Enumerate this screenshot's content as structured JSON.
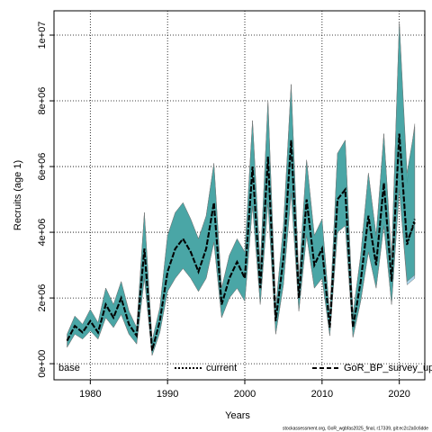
{
  "chart_data": {
    "type": "line",
    "x_label": "Years",
    "y_label": "Recruits (age 1)",
    "legend_label": "base",
    "footer": "stockassessment.org, GoR_wgbfas2025_final, r17339, git:ec2c2a0c6dde",
    "grid": true,
    "xlim": [
      1975.3,
      2023.3
    ],
    "xticks": [
      1980,
      1990,
      2000,
      2010,
      2020
    ],
    "ylim": [
      -490000.0,
      10740000.0
    ],
    "yticks": [
      {
        "value": 0,
        "label": "0e+00"
      },
      {
        "value": 2000000,
        "label": "2e+06"
      },
      {
        "value": 4000000,
        "label": "4e+06"
      },
      {
        "value": 6000000,
        "label": "6e+06"
      },
      {
        "value": 8000000,
        "label": "8e+06"
      },
      {
        "value": 10000000,
        "label": "1e+07"
      }
    ],
    "x": [
      1977,
      1978,
      1979,
      1980,
      1981,
      1982,
      1983,
      1984,
      1985,
      1986,
      1987,
      1988,
      1989,
      1990,
      1991,
      1992,
      1993,
      1994,
      1995,
      1996,
      1997,
      1998,
      1999,
      2000,
      2001,
      2002,
      2003,
      2004,
      2005,
      2006,
      2007,
      2008,
      2009,
      2010,
      2011,
      2012,
      2013,
      2014,
      2015,
      2016,
      2017,
      2018,
      2019,
      2020,
      2021,
      2022
    ],
    "series": [
      {
        "name": "GoR_BP_survey_up",
        "color": "#000000",
        "band_color": "#a9d6ec",
        "dash": "5,3",
        "values": [
          700000.0,
          1150000.0,
          950000.0,
          1300000.0,
          950000.0,
          1800000.0,
          1400000.0,
          2000000.0,
          1200000.0,
          850000.0,
          3500000.0,
          400000.0,
          1300000.0,
          2800000.0,
          3500000.0,
          3800000.0,
          3400000.0,
          2800000.0,
          3500000.0,
          4900000.0,
          1800000.0,
          2600000.0,
          3100000.0,
          2600000.0,
          6000000.0,
          2300000.0,
          6300000.0,
          1300000.0,
          3200000.0,
          6800000.0,
          2000000.0,
          5000000.0,
          3000000.0,
          3500000.0,
          1100000.0,
          5000000.0,
          5300000.0,
          1100000.0,
          2500000.0,
          4500000.0,
          3000000.0,
          5500000.0,
          2500000.0,
          7000000.0,
          3700000.0,
          4300000.0
        ],
        "lower": [
          500000.0,
          900000.0,
          750000.0,
          1000000.0,
          750000.0,
          1400000.0,
          1100000.0,
          1500000.0,
          900000.0,
          600000.0,
          2600000.0,
          250000.0,
          950000.0,
          2200000.0,
          2600000.0,
          2900000.0,
          2600000.0,
          2200000.0,
          2600000.0,
          3700000.0,
          1400000.0,
          2000000.0,
          2300000.0,
          1900000.0,
          4800000.0,
          1800000.0,
          4900000.0,
          900000.0,
          2400000.0,
          5200000.0,
          1600000.0,
          3900000.0,
          2300000.0,
          2600000.0,
          850000.0,
          4000000.0,
          4200000.0,
          800000.0,
          1900000.0,
          3400000.0,
          2300000.0,
          4200000.0,
          1800000.0,
          5300000.0,
          2400000.0,
          2600000.0
        ],
        "upper": [
          900000.0,
          1450000.0,
          1200000.0,
          1650000.0,
          1250000.0,
          2300000.0,
          1800000.0,
          2500000.0,
          1600000.0,
          1100000.0,
          4600000.0,
          700000.0,
          1700000.0,
          3900000.0,
          4600000.0,
          4900000.0,
          4400000.0,
          3800000.0,
          4500000.0,
          6100000.0,
          2300000.0,
          3300000.0,
          3800000.0,
          3400000.0,
          7400000.0,
          3000000.0,
          8000000.0,
          1700000.0,
          4200000.0,
          8500000.0,
          2600000.0,
          6200000.0,
          3900000.0,
          4400000.0,
          1500000.0,
          6400000.0,
          6800000.0,
          1500000.0,
          3300000.0,
          5800000.0,
          3900000.0,
          7000000.0,
          3200000.0,
          10400000.0,
          5500000.0,
          7300000.0
        ]
      },
      {
        "name": "current",
        "color": "#000000",
        "band_color": "#3a9e9a",
        "dash": "2,2",
        "values": [
          700000.0,
          1150000.0,
          950000.0,
          1300000.0,
          950000.0,
          1800000.0,
          1400000.0,
          2000000.0,
          1200000.0,
          850000.0,
          3500000.0,
          400000.0,
          1300000.0,
          2800000.0,
          3500000.0,
          3800000.0,
          3400000.0,
          2800000.0,
          3500000.0,
          4900000.0,
          1800000.0,
          2600000.0,
          3100000.0,
          2600000.0,
          6000000.0,
          2300000.0,
          6300000.0,
          1300000.0,
          3200000.0,
          6800000.0,
          2000000.0,
          5000000.0,
          3000000.0,
          3500000.0,
          1100000.0,
          5000000.0,
          5300000.0,
          1100000.0,
          2500000.0,
          4500000.0,
          3000000.0,
          5500000.0,
          2500000.0,
          7000000.0,
          3600000.0,
          4400000.0
        ],
        "lower": [
          500000.0,
          900000.0,
          750000.0,
          1000000.0,
          750000.0,
          1400000.0,
          1100000.0,
          1500000.0,
          900000.0,
          600000.0,
          2600000.0,
          250000.0,
          950000.0,
          2200000.0,
          2600000.0,
          2900000.0,
          2600000.0,
          2200000.0,
          2600000.0,
          3700000.0,
          1400000.0,
          2000000.0,
          2300000.0,
          1900000.0,
          4800000.0,
          1800000.0,
          4900000.0,
          900000.0,
          2400000.0,
          5200000.0,
          1600000.0,
          3900000.0,
          2300000.0,
          2600000.0,
          850000.0,
          4000000.0,
          4200000.0,
          800000.0,
          1900000.0,
          3400000.0,
          2300000.0,
          4200000.0,
          1800000.0,
          5300000.0,
          2500000.0,
          2700000.0
        ],
        "upper": [
          900000.0,
          1450000.0,
          1200000.0,
          1650000.0,
          1250000.0,
          2300000.0,
          1800000.0,
          2500000.0,
          1600000.0,
          1100000.0,
          4600000.0,
          700000.0,
          1700000.0,
          3900000.0,
          4600000.0,
          4900000.0,
          4400000.0,
          3800000.0,
          4500000.0,
          6100000.0,
          2300000.0,
          3300000.0,
          3800000.0,
          3400000.0,
          7400000.0,
          3000000.0,
          8000000.0,
          1700000.0,
          4200000.0,
          8500000.0,
          2600000.0,
          6200000.0,
          3900000.0,
          4400000.0,
          1500000.0,
          6400000.0,
          6800000.0,
          1500000.0,
          3300000.0,
          5800000.0,
          3900000.0,
          7000000.0,
          3200000.0,
          10400000.0,
          5800000.0,
          7200000.0
        ]
      }
    ],
    "legend_order": [
      1,
      0
    ]
  }
}
